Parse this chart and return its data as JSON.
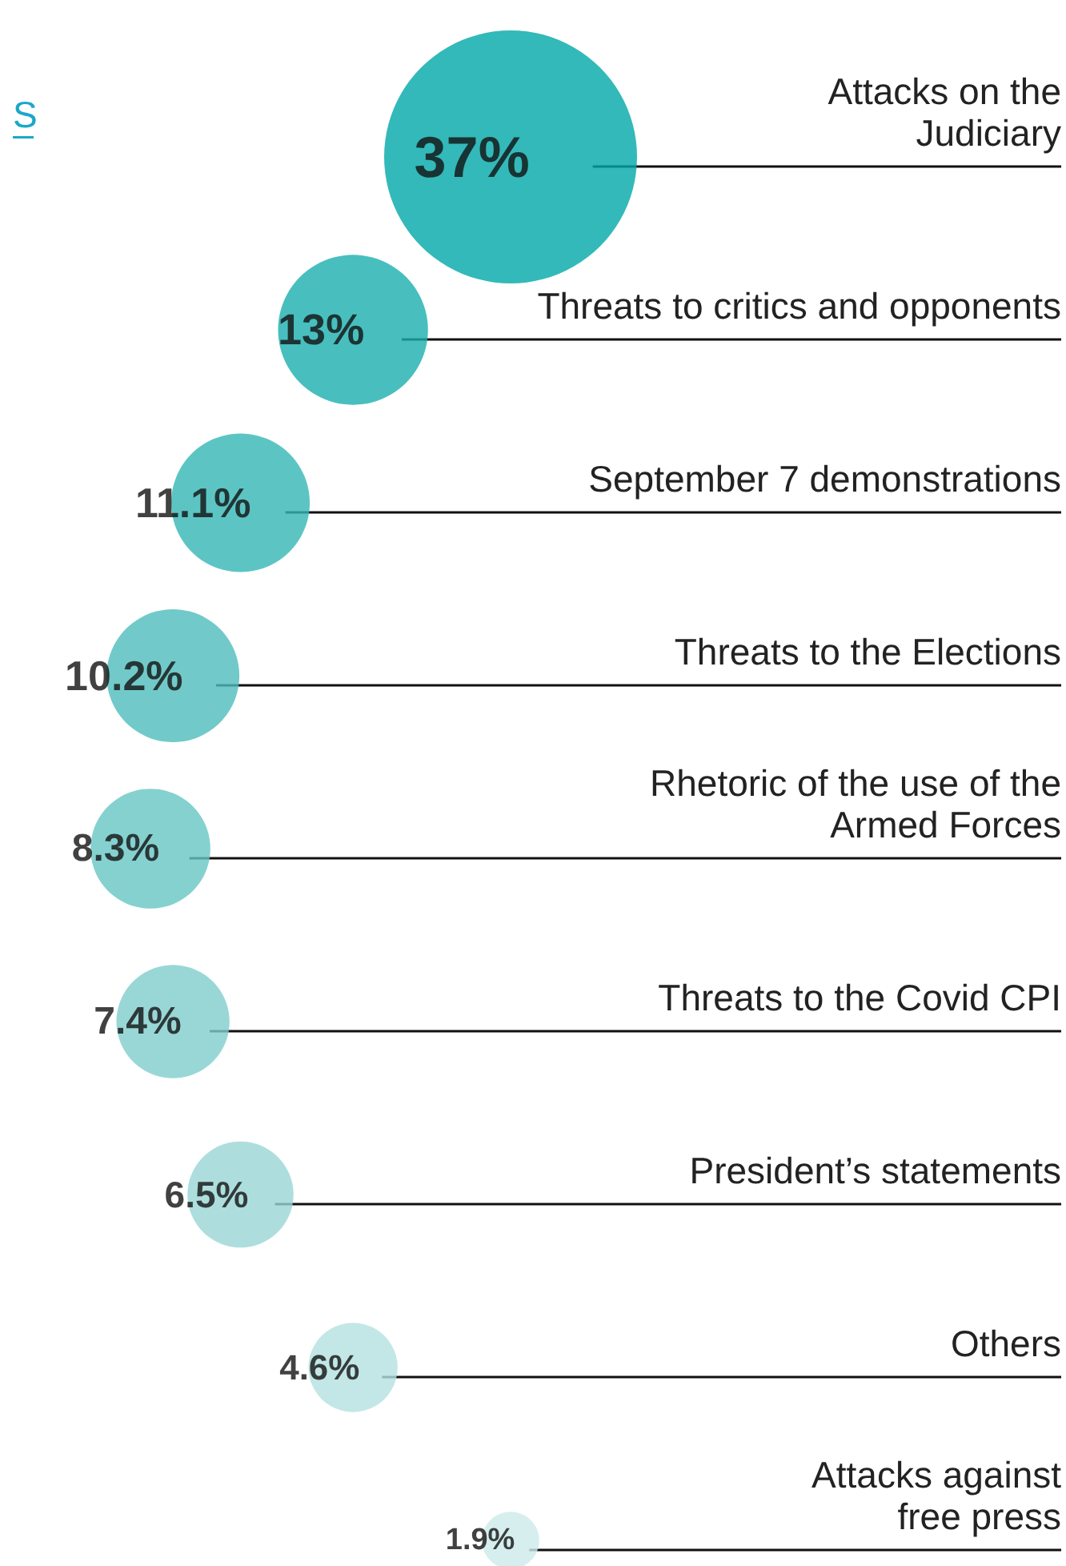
{
  "chart_data": {
    "type": "other",
    "categories": [
      "Attacks on the\nJudiciary",
      "Threats to critics and opponents",
      "September 7 demonstrations",
      "Threats to the Elections",
      "Rhetoric of the use of the\nArmed Forces",
      "Threats to the Covid CPI",
      "President’s statements",
      "Others",
      "Attacks against\nfree press"
    ],
    "values": [
      37,
      13,
      11.1,
      10.2,
      8.3,
      7.4,
      6.5,
      4.6,
      1.9
    ],
    "value_labels": [
      "37%",
      "13%",
      "11.1%",
      "10.2%",
      "8.3%",
      "7.4%",
      "6.5%",
      "4.6%",
      "1.9%"
    ],
    "colors": [
      "#00a8a8",
      "#1aafae",
      "#33b6b5",
      "#4dbdbc",
      "#66c5c4",
      "#80cdcd",
      "#99d6d5",
      "#b3e1e0",
      "#cdeaea"
    ],
    "annotations": [
      "S"
    ]
  }
}
